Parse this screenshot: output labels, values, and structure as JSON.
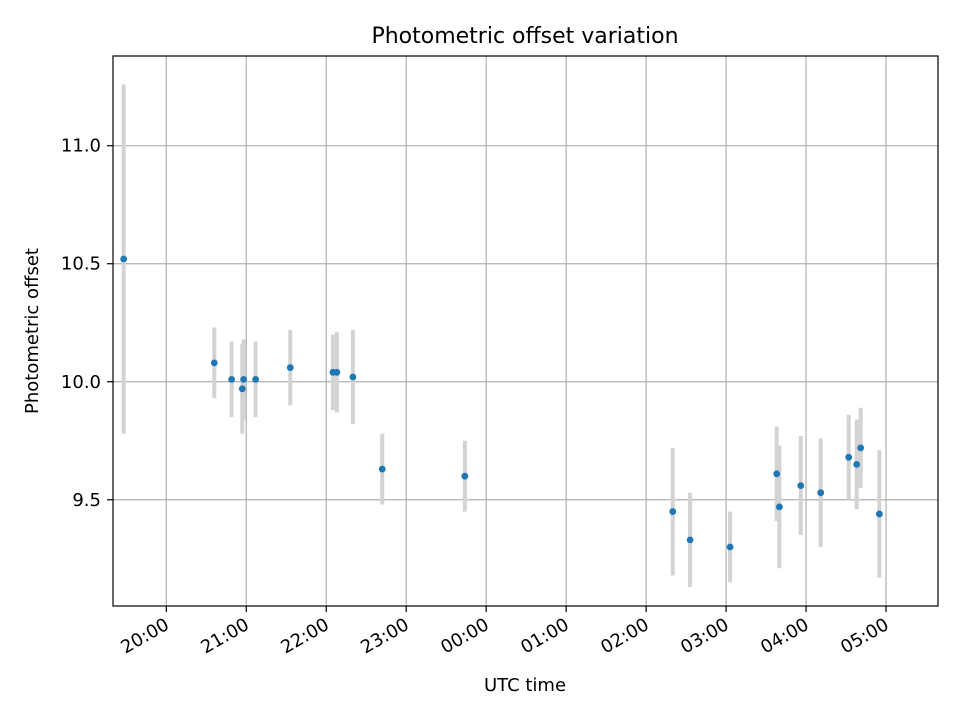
{
  "chart_data": {
    "type": "scatter",
    "title": "Photometric offset variation",
    "xlabel": "UTC time",
    "ylabel": "Photometric offset",
    "grid": true,
    "x_ticks": [
      "20:00",
      "21:00",
      "22:00",
      "23:00",
      "00:00",
      "01:00",
      "02:00",
      "03:00",
      "04:00",
      "05:00"
    ],
    "y_ticks": [
      "9.5",
      "10.0",
      "10.5",
      "11.0"
    ],
    "xlim": [
      "19:20",
      "05:39"
    ],
    "ylim": [
      9.05,
      11.38
    ],
    "colors": {
      "point": "#1f77b4",
      "errorbar": "#d3d3d3",
      "grid": "#b0b0b0"
    },
    "points": [
      {
        "x": "19:28",
        "y": 10.52,
        "err": 0.74
      },
      {
        "x": "20:36",
        "y": 10.08,
        "err": 0.15
      },
      {
        "x": "20:49",
        "y": 10.01,
        "err": 0.16
      },
      {
        "x": "20:57",
        "y": 9.97,
        "err": 0.19
      },
      {
        "x": "20:58",
        "y": 10.01,
        "err": 0.17
      },
      {
        "x": "21:07",
        "y": 10.01,
        "err": 0.16
      },
      {
        "x": "21:33",
        "y": 10.06,
        "err": 0.16
      },
      {
        "x": "22:05",
        "y": 10.04,
        "err": 0.16
      },
      {
        "x": "22:08",
        "y": 10.04,
        "err": 0.17
      },
      {
        "x": "22:20",
        "y": 10.02,
        "err": 0.2
      },
      {
        "x": "22:42",
        "y": 9.63,
        "err": 0.15
      },
      {
        "x": "23:44",
        "y": 9.6,
        "err": 0.15
      },
      {
        "x": "02:20",
        "y": 9.45,
        "err": 0.27
      },
      {
        "x": "02:33",
        "y": 9.33,
        "err": 0.2
      },
      {
        "x": "03:03",
        "y": 9.3,
        "err": 0.15
      },
      {
        "x": "03:38",
        "y": 9.61,
        "err": 0.2
      },
      {
        "x": "03:40",
        "y": 9.47,
        "err": 0.26
      },
      {
        "x": "03:56",
        "y": 9.56,
        "err": 0.21
      },
      {
        "x": "04:11",
        "y": 9.53,
        "err": 0.23
      },
      {
        "x": "04:32",
        "y": 9.68,
        "err": 0.18
      },
      {
        "x": "04:38",
        "y": 9.65,
        "err": 0.19
      },
      {
        "x": "04:41",
        "y": 9.72,
        "err": 0.17
      },
      {
        "x": "04:55",
        "y": 9.44,
        "err": 0.27
      }
    ]
  }
}
